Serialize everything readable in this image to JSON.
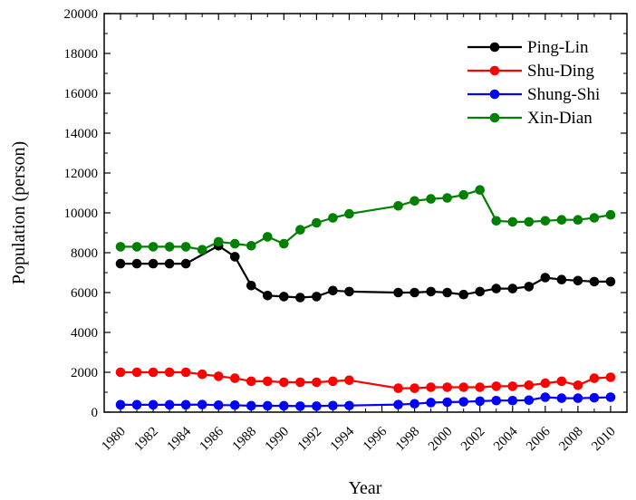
{
  "chart_data": {
    "type": "line",
    "title": "",
    "xlabel": "Year",
    "ylabel": "Population (person)",
    "xlim": [
      1979,
      2011
    ],
    "ylim": [
      0,
      20000
    ],
    "x_ticks": [
      1980,
      1982,
      1984,
      1986,
      1988,
      1990,
      1992,
      1994,
      1996,
      1998,
      2000,
      2002,
      2004,
      2006,
      2008,
      2010
    ],
    "y_ticks": [
      0,
      2000,
      4000,
      6000,
      8000,
      10000,
      12000,
      14000,
      16000,
      18000,
      20000
    ],
    "grid": false,
    "legend_position": "top-right",
    "series": [
      {
        "name": "Ping-Lin",
        "color": "#000000",
        "x": [
          1980,
          1981,
          1982,
          1983,
          1984,
          1986,
          1987,
          1988,
          1989,
          1990,
          1991,
          1992,
          1993,
          1994,
          1997,
          1998,
          1999,
          2000,
          2001,
          2002,
          2003,
          2004,
          2005,
          2006,
          2007,
          2008,
          2009,
          2010
        ],
        "y": [
          7450,
          7450,
          7450,
          7450,
          7450,
          8350,
          7800,
          6350,
          5850,
          5800,
          5750,
          5800,
          6100,
          6050,
          6000,
          6000,
          6050,
          6000,
          5900,
          6050,
          6200,
          6200,
          6300,
          6750,
          6650,
          6600,
          6550,
          6550
        ]
      },
      {
        "name": "Shu-Ding",
        "color": "#ff0000",
        "x": [
          1980,
          1981,
          1982,
          1983,
          1984,
          1985,
          1986,
          1987,
          1988,
          1989,
          1990,
          1991,
          1992,
          1993,
          1994,
          1997,
          1998,
          1999,
          2000,
          2001,
          2002,
          2003,
          2004,
          2005,
          2006,
          2007,
          2008,
          2009,
          2010
        ],
        "y": [
          2000,
          2000,
          2000,
          2000,
          2000,
          1900,
          1800,
          1700,
          1550,
          1550,
          1500,
          1500,
          1500,
          1550,
          1600,
          1200,
          1200,
          1250,
          1250,
          1250,
          1250,
          1300,
          1300,
          1350,
          1450,
          1550,
          1350,
          1700,
          1750
        ]
      },
      {
        "name": "Shung-Shi",
        "color": "#0000ff",
        "x": [
          1980,
          1981,
          1982,
          1983,
          1984,
          1985,
          1986,
          1987,
          1988,
          1989,
          1990,
          1991,
          1992,
          1993,
          1994,
          1997,
          1998,
          1999,
          2000,
          2001,
          2002,
          2003,
          2004,
          2005,
          2006,
          2007,
          2008,
          2009,
          2010
        ],
        "y": [
          370,
          370,
          370,
          370,
          370,
          380,
          350,
          350,
          320,
          320,
          320,
          300,
          300,
          330,
          330,
          380,
          420,
          480,
          500,
          520,
          550,
          580,
          580,
          600,
          750,
          700,
          700,
          720,
          750
        ]
      },
      {
        "name": "Xin-Dian",
        "color": "#008000",
        "x": [
          1980,
          1981,
          1982,
          1983,
          1984,
          1985,
          1986,
          1987,
          1988,
          1989,
          1990,
          1991,
          1992,
          1993,
          1994,
          1997,
          1998,
          1999,
          2000,
          2001,
          2002,
          2003,
          2004,
          2005,
          2006,
          2007,
          2008,
          2009,
          2010
        ],
        "y": [
          8300,
          8300,
          8300,
          8300,
          8300,
          8150,
          8550,
          8450,
          8350,
          8800,
          8450,
          9150,
          9500,
          9750,
          9950,
          10350,
          10600,
          10700,
          10750,
          10900,
          11150,
          9600,
          9550,
          9550,
          9600,
          9650,
          9650,
          9750,
          9900
        ]
      }
    ]
  }
}
